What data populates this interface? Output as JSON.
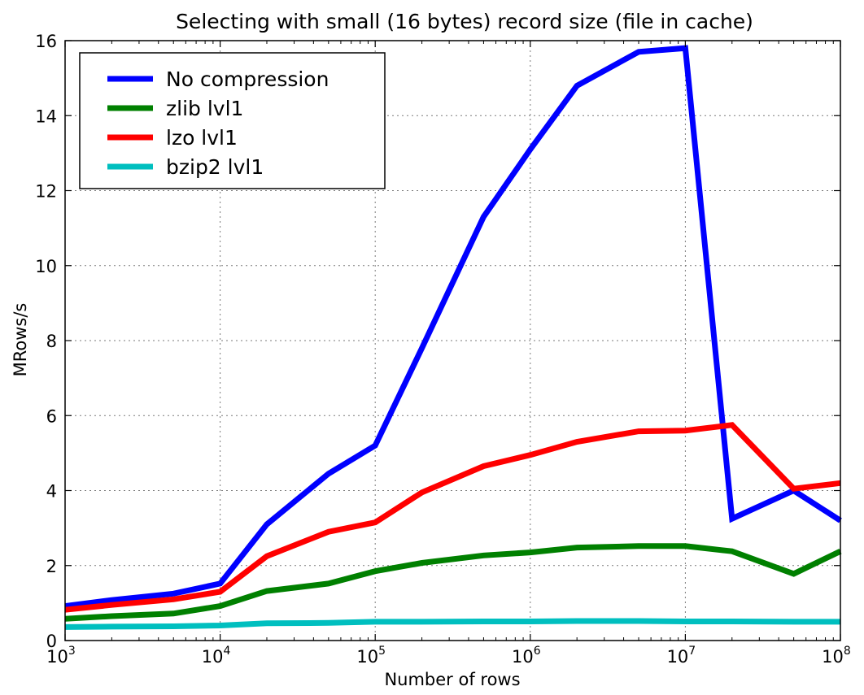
{
  "chart_data": {
    "type": "line",
    "title": "Selecting with small (16 bytes) record size (file in cache)",
    "xlabel": "Number of rows",
    "ylabel": "MRows/s",
    "xscale": "log",
    "xlim": [
      1000,
      100000000
    ],
    "ylim": [
      0,
      16
    ],
    "grid": true,
    "legend_position": "top-left",
    "x_ticks": [
      {
        "base": "10",
        "exp": "3"
      },
      {
        "base": "10",
        "exp": "4"
      },
      {
        "base": "10",
        "exp": "5"
      },
      {
        "base": "10",
        "exp": "6"
      },
      {
        "base": "10",
        "exp": "7"
      },
      {
        "base": "10",
        "exp": "8"
      }
    ],
    "y_ticks": [
      "0",
      "2",
      "4",
      "6",
      "8",
      "10",
      "12",
      "14",
      "16"
    ],
    "x": [
      1000,
      2000,
      5000,
      10000,
      20000,
      50000,
      100000,
      200000,
      500000,
      1000000,
      2000000,
      5000000,
      10000000,
      20000000,
      50000000,
      100000000
    ],
    "series": [
      {
        "name": "No compression",
        "color": "#0000ff",
        "values": [
          0.92,
          1.08,
          1.25,
          1.52,
          3.1,
          4.45,
          5.2,
          7.8,
          11.3,
          13.1,
          14.8,
          15.7,
          15.8,
          3.25,
          4.0,
          3.2
        ]
      },
      {
        "name": "zlib lvl1",
        "color": "#008000",
        "values": [
          0.58,
          0.65,
          0.72,
          0.92,
          1.32,
          1.52,
          1.85,
          2.07,
          2.27,
          2.35,
          2.48,
          2.52,
          2.52,
          2.38,
          1.78,
          2.38
        ]
      },
      {
        "name": "lzo lvl1",
        "color": "#ff0000",
        "values": [
          0.82,
          0.95,
          1.1,
          1.3,
          2.25,
          2.9,
          3.15,
          3.95,
          4.65,
          4.95,
          5.3,
          5.58,
          5.6,
          5.75,
          4.05,
          4.2
        ]
      },
      {
        "name": "bzip2 lvl1",
        "color": "#00bfbf",
        "values": [
          0.36,
          0.37,
          0.38,
          0.4,
          0.46,
          0.47,
          0.5,
          0.5,
          0.51,
          0.51,
          0.52,
          0.52,
          0.51,
          0.51,
          0.5,
          0.5
        ]
      }
    ]
  }
}
